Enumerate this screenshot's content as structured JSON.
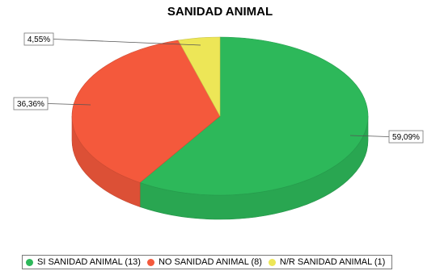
{
  "chart_data": {
    "type": "pie",
    "title": "SANIDAD ANIMAL",
    "slices": [
      {
        "name": "SI SANIDAD ANIMAL",
        "count": 13,
        "percent": 59.09,
        "label": "59,09%",
        "color": "#2db85a"
      },
      {
        "name": "NO SANIDAD ANIMAL",
        "count": 8,
        "percent": 36.36,
        "label": "36,36%",
        "color": "#f4593c"
      },
      {
        "name": "N/R SANIDAD ANIMAL",
        "count": 1,
        "percent": 4.55,
        "label": "4,55%",
        "color": "#ede657"
      }
    ],
    "legend": [
      {
        "text": "SI SANIDAD ANIMAL (13)",
        "color": "#2db85a"
      },
      {
        "text": "NO SANIDAD ANIMAL (8)",
        "color": "#f4593c"
      },
      {
        "text": "N/R SANIDAD ANIMAL (1)",
        "color": "#ede657"
      }
    ],
    "legend_position": "bottom",
    "style": "3d"
  }
}
